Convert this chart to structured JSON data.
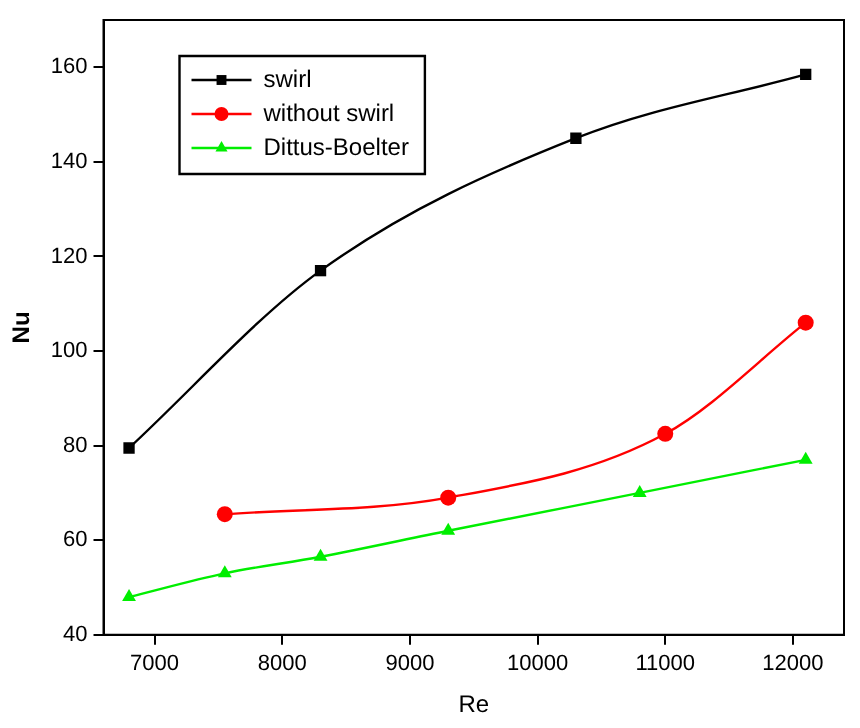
{
  "chart_data": {
    "type": "line",
    "xlabel": "Re",
    "ylabel": "Nu",
    "xlim": [
      6600,
      12400
    ],
    "xticks": [
      7000,
      8000,
      9000,
      10000,
      11000,
      12000
    ],
    "ylim": [
      40,
      170
    ],
    "yticks": [
      40,
      60,
      80,
      100,
      120,
      140,
      160
    ],
    "grid": false,
    "legend": "top left",
    "series": [
      {
        "name": "swirl",
        "color": "#000000",
        "marker": "square",
        "x": [
          6800,
          8300,
          10300,
          12100
        ],
        "values": [
          79.5,
          117,
          145,
          158.5
        ]
      },
      {
        "name": "without swirl",
        "color": "#ff0000",
        "marker": "circle",
        "x": [
          7550,
          9300,
          11000,
          12100
        ],
        "values": [
          65.5,
          69,
          82.5,
          106
        ]
      },
      {
        "name": "Dittus-Boelter",
        "color": "#00ee00",
        "marker": "triangle",
        "x": [
          6800,
          7550,
          8300,
          9300,
          10800,
          12100
        ],
        "values": [
          48,
          53,
          56.5,
          62,
          70,
          77
        ]
      }
    ]
  }
}
